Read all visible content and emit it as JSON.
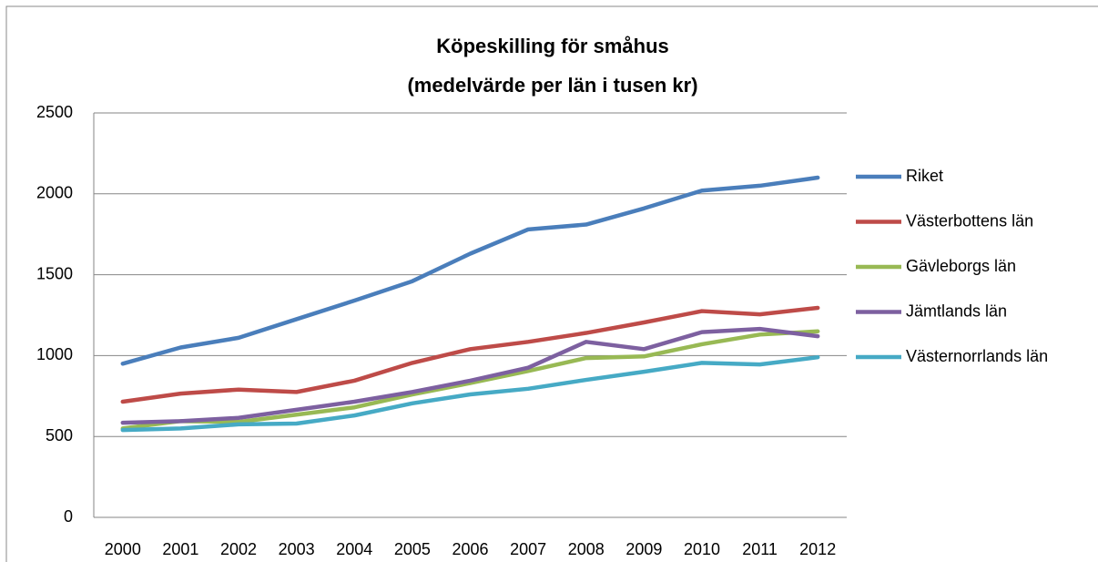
{
  "chart_data": {
    "type": "line",
    "title": "Köpeskilling för småhus",
    "subtitle": "(medelvärde per län i tusen kr)",
    "categories": [
      "2000",
      "2001",
      "2002",
      "2003",
      "2004",
      "2005",
      "2006",
      "2007",
      "2008",
      "2009",
      "2010",
      "2011",
      "2012"
    ],
    "series": [
      {
        "name": "Riket",
        "color": "#4a7ebb",
        "values": [
          950,
          1050,
          1110,
          1225,
          1340,
          1460,
          1630,
          1780,
          1810,
          1910,
          2020,
          2050,
          2100
        ]
      },
      {
        "name": "Västerbottens län",
        "color": "#be4b48",
        "values": [
          715,
          765,
          790,
          775,
          845,
          955,
          1040,
          1085,
          1140,
          1205,
          1275,
          1255,
          1295
        ]
      },
      {
        "name": "Gävleborgs län",
        "color": "#98b954",
        "values": [
          550,
          595,
          590,
          635,
          680,
          760,
          830,
          905,
          985,
          995,
          1070,
          1130,
          1150
        ]
      },
      {
        "name": "Jämtlands län",
        "color": "#7d60a0",
        "values": [
          585,
          595,
          615,
          665,
          715,
          775,
          845,
          925,
          1085,
          1040,
          1145,
          1165,
          1120
        ]
      },
      {
        "name": "Västernorrlands län",
        "color": "#46aac5",
        "values": [
          540,
          550,
          575,
          580,
          630,
          705,
          760,
          795,
          850,
          900,
          955,
          945,
          990
        ]
      }
    ],
    "ylim": [
      0,
      2500
    ],
    "yticks": [
      0,
      500,
      1000,
      1500,
      2000,
      2500
    ],
    "grid": true,
    "legend": "right"
  }
}
